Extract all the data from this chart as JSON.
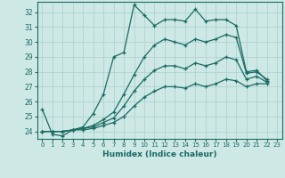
{
  "xlabel": "Humidex (Indice chaleur)",
  "bg_color": "#cde8e5",
  "grid_color": "#aed4d0",
  "line_color": "#1a6b64",
  "xlim": [
    -0.5,
    23.5
  ],
  "ylim": [
    23.5,
    32.7
  ],
  "yticks": [
    24,
    25,
    26,
    27,
    28,
    29,
    30,
    31,
    32
  ],
  "xticks": [
    0,
    1,
    2,
    3,
    4,
    5,
    6,
    7,
    8,
    9,
    10,
    11,
    12,
    13,
    14,
    15,
    16,
    17,
    18,
    19,
    20,
    21,
    22,
    23
  ],
  "series": [
    [
      25.5,
      23.8,
      23.7,
      24.1,
      24.3,
      25.2,
      26.5,
      29.0,
      29.3,
      32.5,
      31.8,
      31.1,
      31.5,
      31.5,
      31.4,
      32.2,
      31.4,
      31.5,
      31.5,
      31.1,
      28.0,
      28.1,
      27.4
    ],
    [
      24.0,
      24.0,
      24.0,
      24.1,
      24.2,
      24.4,
      24.8,
      25.3,
      26.5,
      27.8,
      29.0,
      29.8,
      30.2,
      30.0,
      29.8,
      30.2,
      30.0,
      30.2,
      30.5,
      30.3,
      27.9,
      28.0,
      27.5
    ],
    [
      24.0,
      24.0,
      24.0,
      24.1,
      24.2,
      24.3,
      24.6,
      24.9,
      25.7,
      26.7,
      27.5,
      28.1,
      28.4,
      28.4,
      28.2,
      28.6,
      28.4,
      28.6,
      29.0,
      28.8,
      27.5,
      27.7,
      27.3
    ],
    [
      24.0,
      24.0,
      24.0,
      24.1,
      24.1,
      24.2,
      24.4,
      24.6,
      25.0,
      25.7,
      26.3,
      26.7,
      27.0,
      27.0,
      26.9,
      27.2,
      27.0,
      27.2,
      27.5,
      27.4,
      27.0,
      27.2,
      27.2
    ]
  ]
}
